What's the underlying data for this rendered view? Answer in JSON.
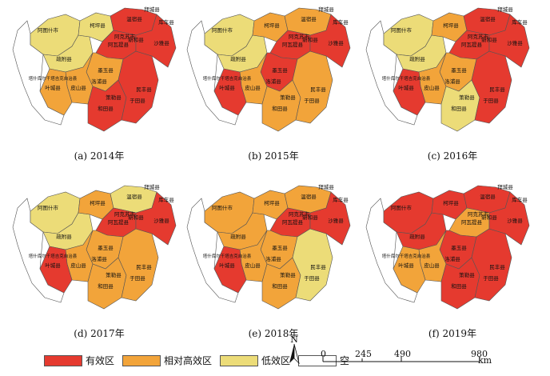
{
  "colors": {
    "effective": "#e53a2f",
    "relatively_high": "#f2a43a",
    "low": "#ecdc78",
    "empty": "#ffffff",
    "border": "#555555"
  },
  "panels": [
    {
      "caption": "(a) 2014年",
      "zones": {
        "W": "low",
        "NW": "low",
        "N": "low",
        "NE": "effective",
        "CN": "effective",
        "C": "orange",
        "CS": "orange",
        "S": "effective",
        "SE": "effective",
        "E": "effective",
        "SW": "orange"
      }
    },
    {
      "caption": "(b) 2015年",
      "zones": {
        "W": "low",
        "NW": "low",
        "N": "orange",
        "NE": "orange",
        "CN": "effective",
        "C": "effective",
        "CS": "orange",
        "S": "orange",
        "SE": "orange",
        "E": "effective",
        "SW": "effective"
      }
    },
    {
      "caption": "(c) 2016年",
      "zones": {
        "W": "low",
        "NW": "low",
        "N": "orange",
        "NE": "effective",
        "CN": "effective",
        "C": "orange",
        "CS": "orange",
        "S": "low",
        "SE": "effective",
        "E": "effective",
        "SW": "effective"
      }
    },
    {
      "caption": "(d) 2017年",
      "zones": {
        "W": "low",
        "NW": "low",
        "N": "orange",
        "NE": "low",
        "CN": "effective",
        "C": "orange",
        "CS": "orange",
        "S": "orange",
        "SE": "orange",
        "E": "effective",
        "SW": "effective"
      }
    },
    {
      "caption": "(e) 2018年",
      "zones": {
        "W": "orange",
        "NW": "orange",
        "N": "orange",
        "NE": "orange",
        "CN": "effective",
        "C": "orange",
        "CS": "orange",
        "S": "orange",
        "SE": "low",
        "E": "effective",
        "SW": "effective"
      }
    },
    {
      "caption": "(f) 2019年",
      "zones": {
        "W": "effective",
        "NW": "effective",
        "N": "effective",
        "NE": "effective",
        "CN": "orange",
        "C": "effective",
        "CS": "orange",
        "S": "effective",
        "SE": "effective",
        "E": "effective",
        "SW": "orange"
      }
    }
  ],
  "labels": [
    {
      "id": "W",
      "text": "阿图什市"
    },
    {
      "id": "NW",
      "text": "疏附县"
    },
    {
      "id": "N",
      "text": "柯坪县"
    },
    {
      "id": "NE",
      "text": "温宿县"
    },
    {
      "id": "NE2",
      "text": "拜城县"
    },
    {
      "id": "NE3",
      "text": "库车县"
    },
    {
      "id": "CN",
      "text": "阿瓦提县"
    },
    {
      "id": "C",
      "text": "墨玉县"
    },
    {
      "id": "CS",
      "text": "皮山县"
    },
    {
      "id": "S",
      "text": "和田县"
    },
    {
      "id": "SE",
      "text": "民丰县"
    },
    {
      "id": "E",
      "text": "沙雅县"
    },
    {
      "id": "SW",
      "text": "叶城县"
    },
    {
      "id": "SW2",
      "text": "塔什库尔干塔吉克自治县"
    },
    {
      "id": "S2",
      "text": "于田县"
    },
    {
      "id": "S3",
      "text": "策勒县"
    },
    {
      "id": "C2",
      "text": "洛浦县"
    },
    {
      "id": "N2",
      "text": "新和县"
    },
    {
      "id": "N3",
      "text": "阿克苏市"
    }
  ],
  "legend": [
    {
      "key": "effective",
      "label": "有效区"
    },
    {
      "key": "relatively_high",
      "label": "相对高效区"
    },
    {
      "key": "low",
      "label": "低效区"
    },
    {
      "key": "empty",
      "label": "空"
    }
  ],
  "north_label": "N",
  "scale": {
    "ticks": [
      "0",
      "245",
      "490",
      "980"
    ],
    "unit": "km"
  }
}
